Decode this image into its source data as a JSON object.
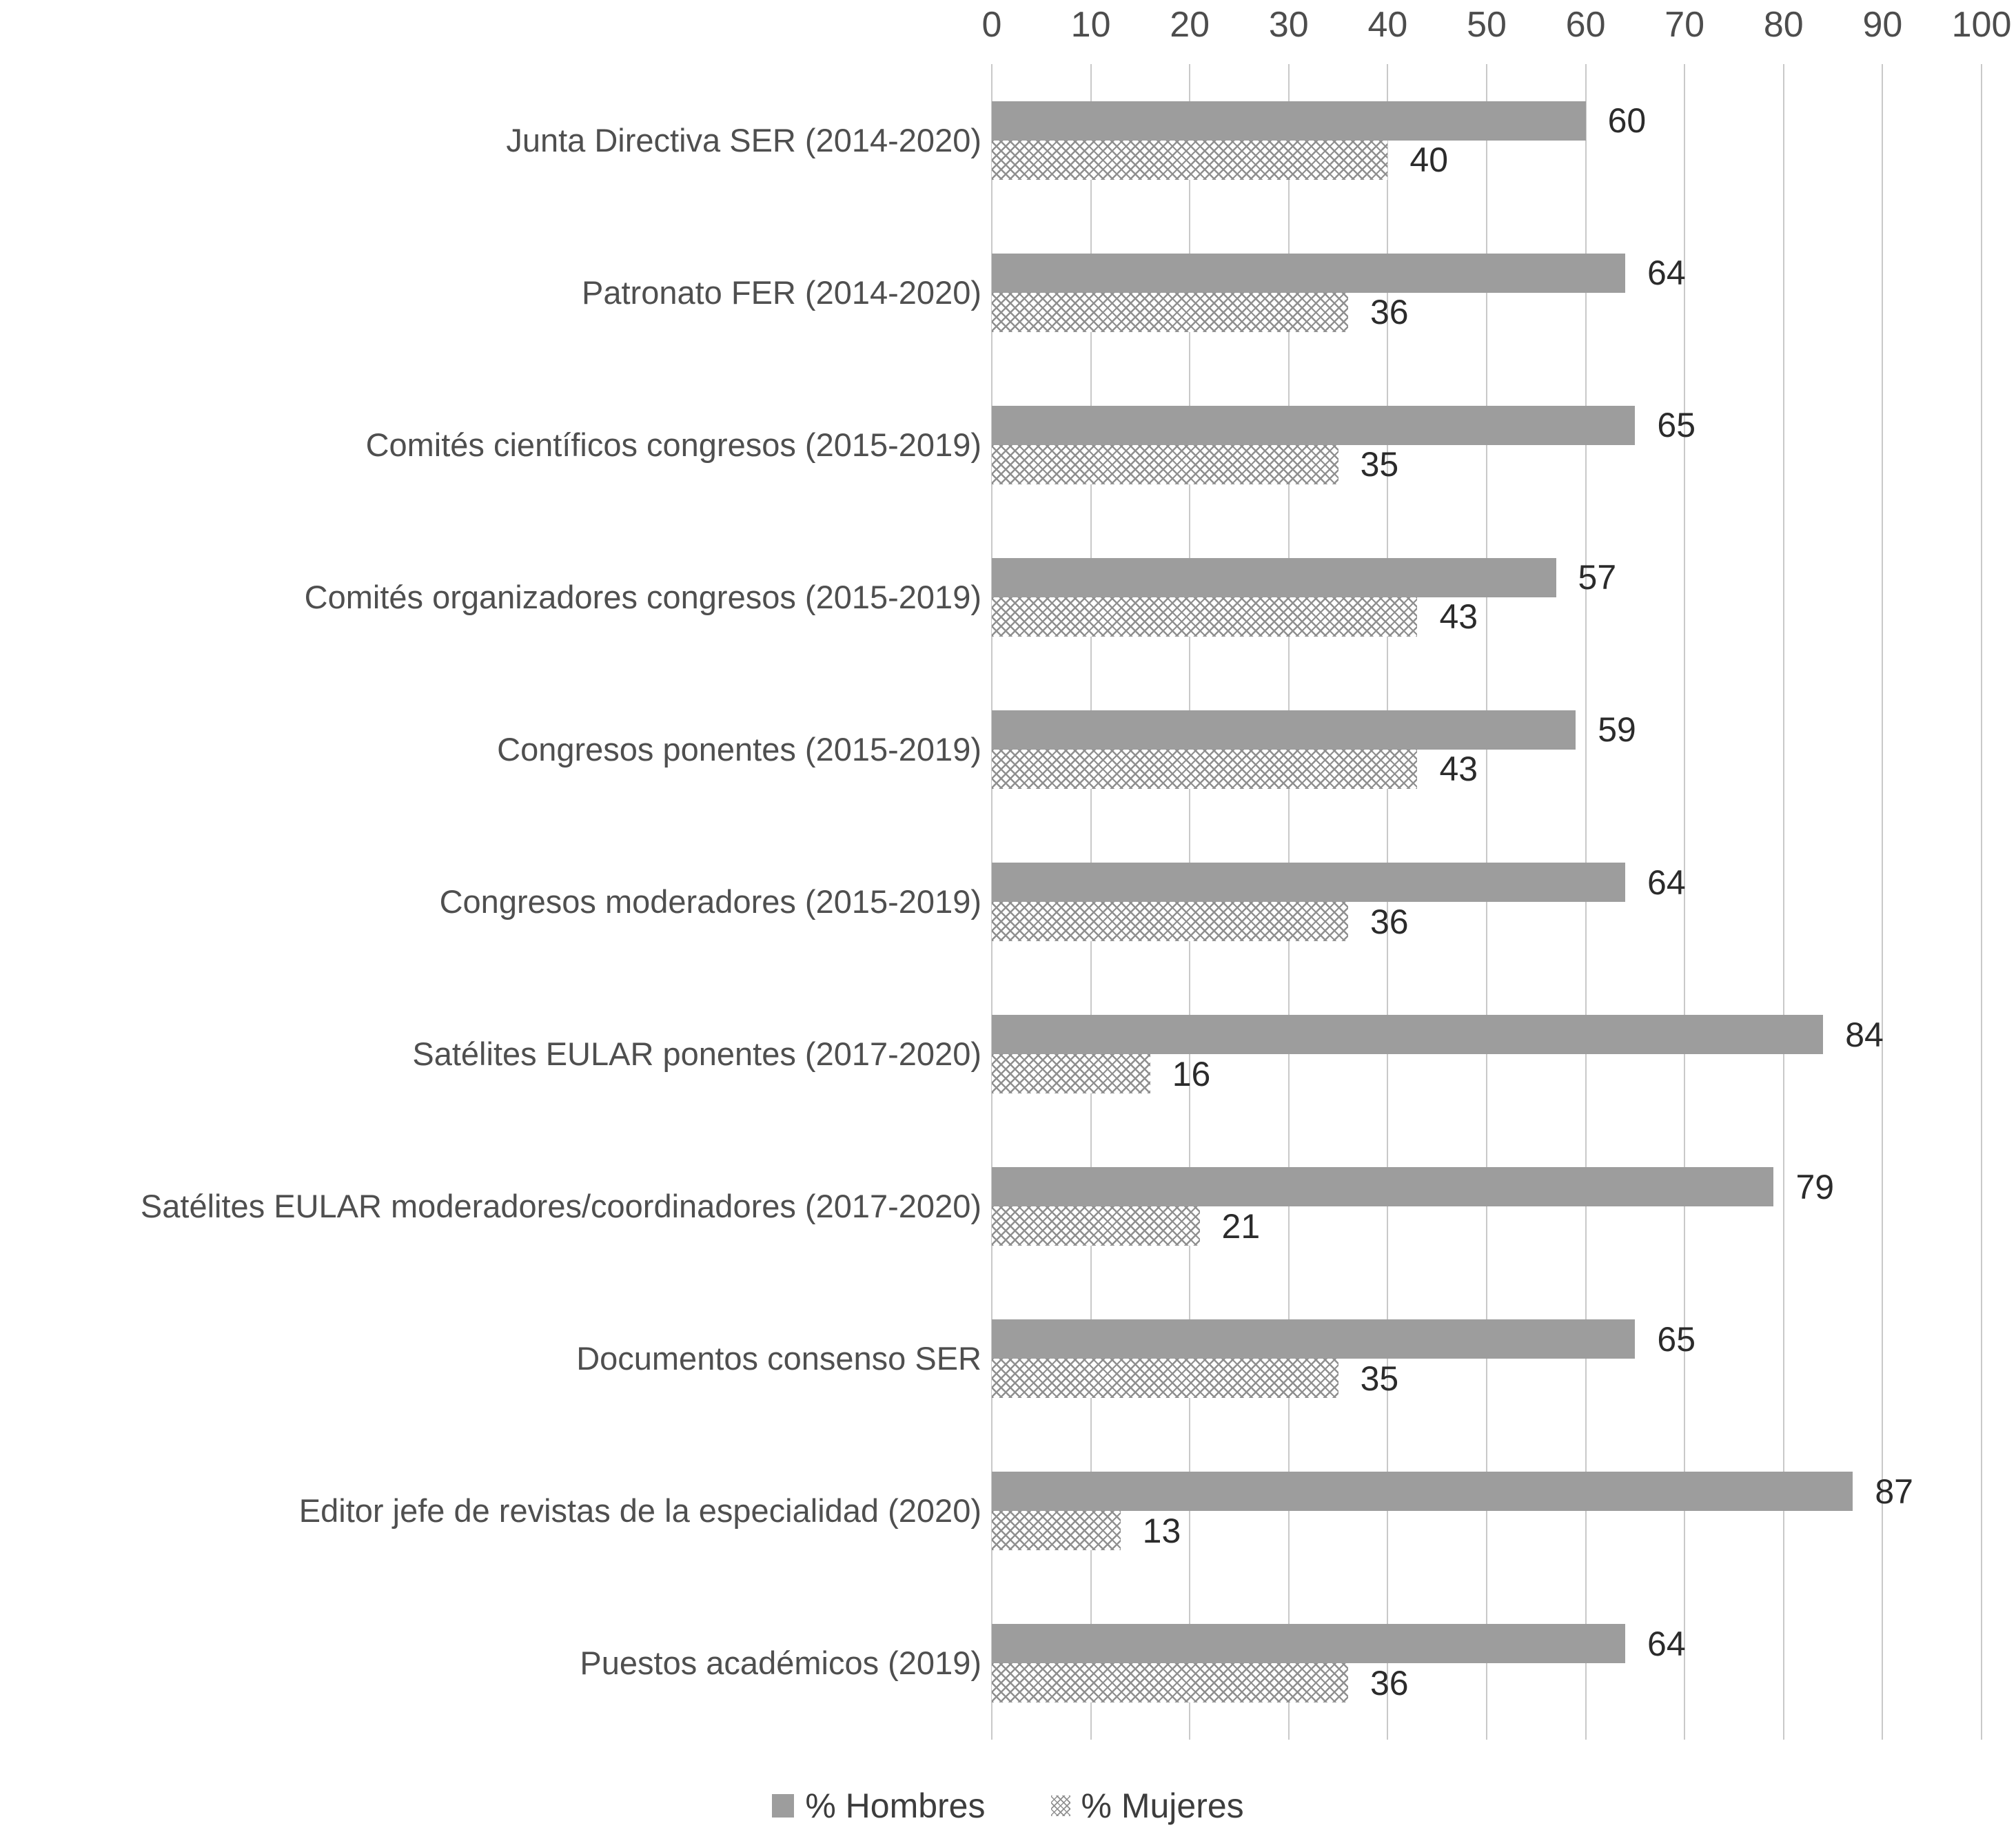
{
  "chart_data": {
    "type": "bar",
    "orientation": "horizontal",
    "title": "",
    "categories": [
      "Junta Directiva SER (2014-2020)",
      "Patronato FER (2014-2020)",
      "Comités científicos congresos (2015-2019)",
      "Comités organizadores congresos (2015-2019)",
      "Congresos ponentes (2015-2019)",
      "Congresos moderadores (2015-2019)",
      "Satélites EULAR ponentes (2017-2020)",
      "Satélites EULAR moderadores/coordinadores (2017-2020)",
      "Documentos consenso SER",
      "Editor jefe de revistas de la especialidad (2020)",
      "Puestos académicos (2019)"
    ],
    "series": [
      {
        "name": "% Hombres",
        "style": "solid",
        "values": [
          60,
          64,
          65,
          57,
          59,
          64,
          84,
          79,
          65,
          87,
          64
        ]
      },
      {
        "name": "% Mujeres",
        "style": "crosshatch",
        "values": [
          40,
          36,
          35,
          43,
          43,
          36,
          16,
          21,
          35,
          13,
          36
        ]
      }
    ],
    "xlim": [
      0,
      100
    ],
    "x_ticks": [
      0,
      10,
      20,
      30,
      40,
      50,
      60,
      70,
      80,
      90,
      100
    ],
    "grid": true,
    "axis_position": "top",
    "legend_position": "bottom",
    "colors": {
      "hombres_bar": "#9d9d9d",
      "mujeres_pattern": "#8f8f8f",
      "gridline": "#c9c9c9",
      "axis_text": "#4d4d4d",
      "category_text": "#4f4f4f",
      "value_text": "#2b2b2b",
      "legend_text": "#3d3d3d",
      "background": "#ffffff"
    }
  }
}
